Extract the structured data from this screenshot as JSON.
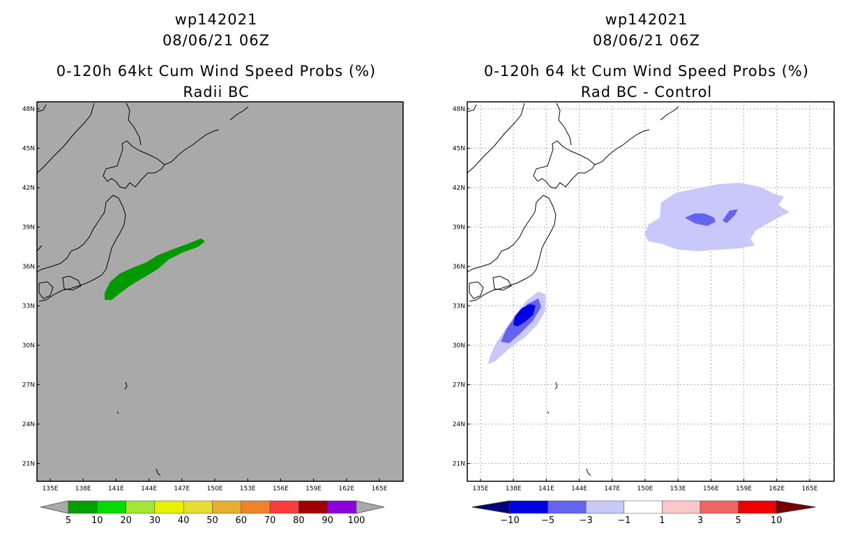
{
  "left_panel": {
    "title1": "wp142021",
    "title2": "08/06/21 06Z",
    "title3": "0-120h 64kt Cum Wind Speed Probs (%)",
    "title4": "Radii BC",
    "background": "#a9a9a9",
    "lat_labels": [
      "48N",
      "45N",
      "42N",
      "39N",
      "36N",
      "33N",
      "30N",
      "27N",
      "24N",
      "21N"
    ],
    "lon_labels": [
      "135E",
      "138E",
      "141E",
      "144E",
      "147E",
      "150E",
      "153E",
      "156E",
      "159E",
      "162E",
      "165E"
    ],
    "colorbar": {
      "colors": [
        "#00a000",
        "#00dc00",
        "#a0e632",
        "#e6f000",
        "#e6dc32",
        "#e6af2d",
        "#f08228",
        "#fa3c3c",
        "#a00000",
        "#8c00dc"
      ],
      "labels": [
        "5",
        "10",
        "20",
        "30",
        "40",
        "50",
        "60",
        "70",
        "80",
        "90",
        "100"
      ]
    },
    "swath_color": "#009a00"
  },
  "right_panel": {
    "title1": "wp142021",
    "title2": "08/06/21 06Z",
    "title3": "0-120h 64 kt Cum Wind Speed Probs (%)",
    "title4": "Rad BC - Control",
    "background": "#ffffff",
    "lat_labels": [
      "48N",
      "45N",
      "42N",
      "39N",
      "36N",
      "33N",
      "30N",
      "27N",
      "24N",
      "21N"
    ],
    "lon_labels": [
      "135E",
      "138E",
      "141E",
      "144E",
      "147E",
      "150E",
      "153E",
      "156E",
      "159E",
      "162E",
      "165E"
    ],
    "colorbar": {
      "colors": [
        "#0000e6",
        "#6464f0",
        "#c8c8fa",
        "#ffffff",
        "#fac8c8",
        "#f06464",
        "#f00000"
      ],
      "end_left": "#00007a",
      "end_right": "#7a0000",
      "labels": [
        "-10",
        "-5",
        "-3",
        "-1",
        "1",
        "3",
        "5",
        "10"
      ]
    },
    "fill_light": "#c8c8fa",
    "fill_mid": "#6464f0",
    "fill_dark": "#0000e6"
  }
}
